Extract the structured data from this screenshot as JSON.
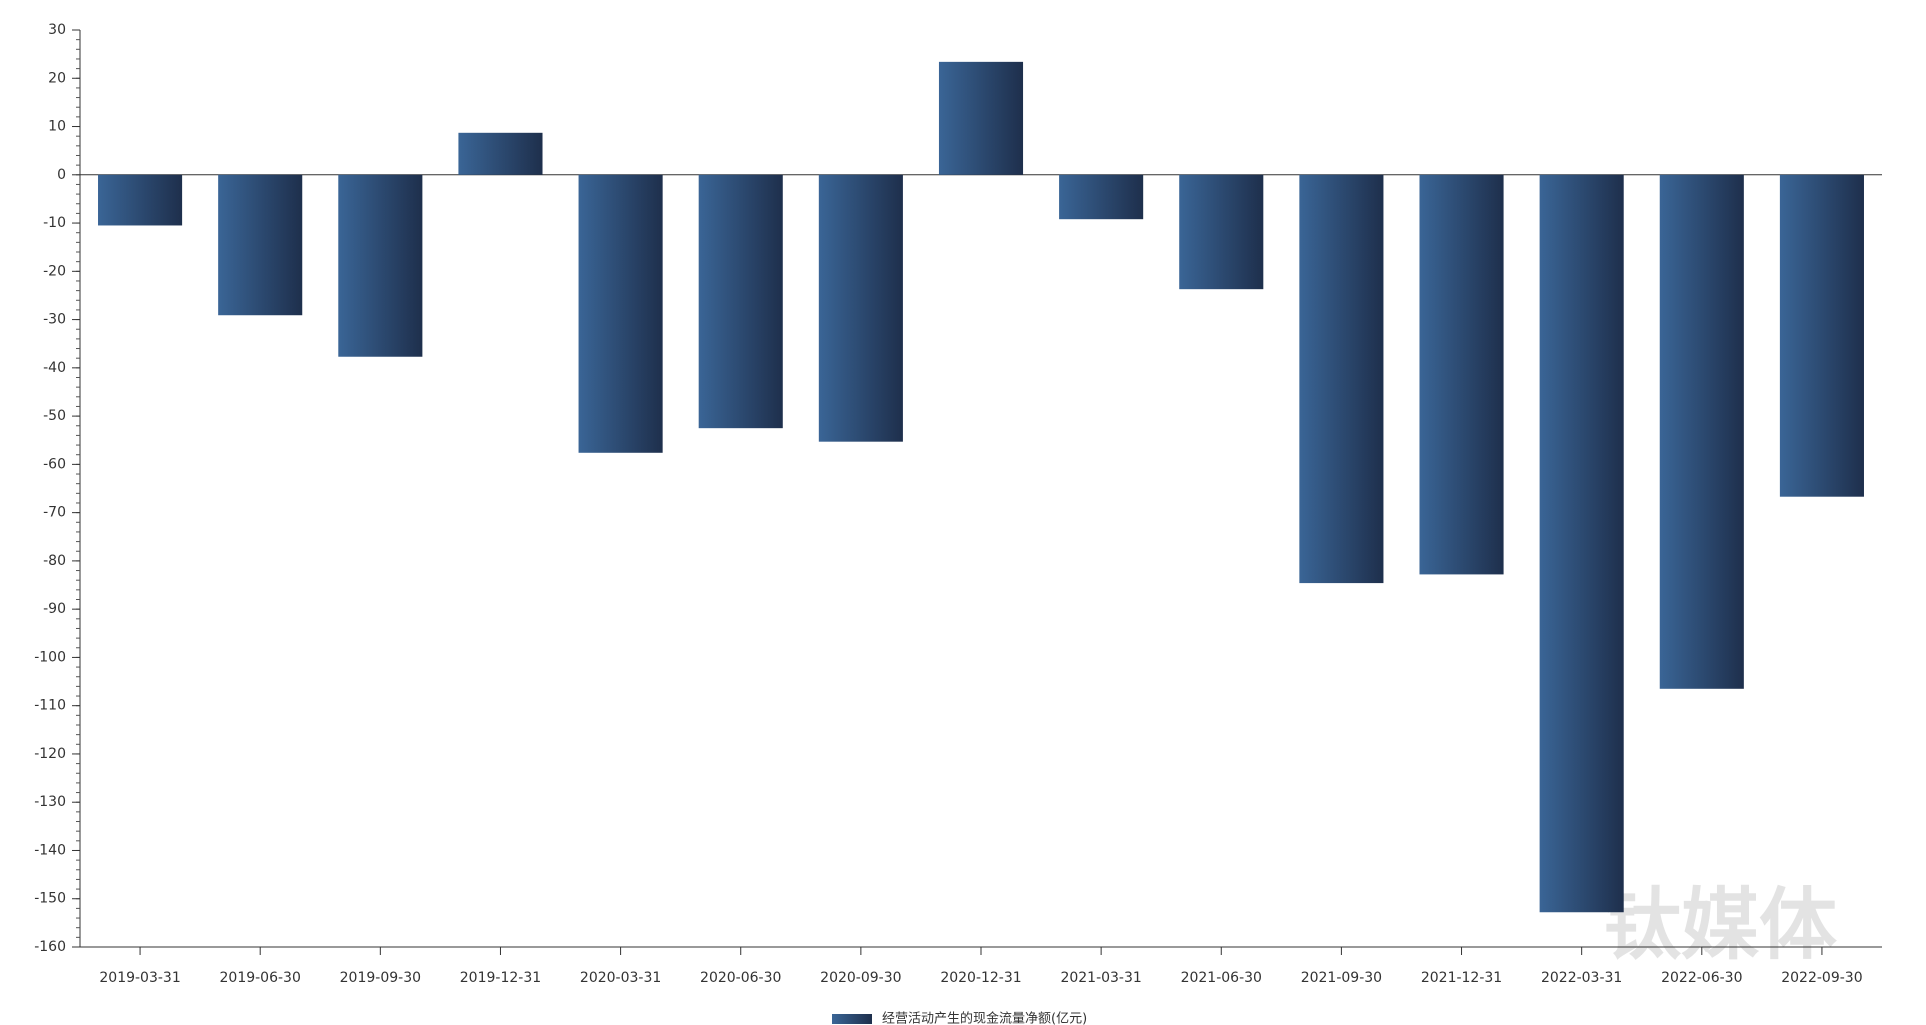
{
  "chart_data": {
    "type": "bar",
    "categories": [
      "2019-03-31",
      "2019-06-30",
      "2019-09-30",
      "2019-12-31",
      "2020-03-31",
      "2020-06-30",
      "2020-09-30",
      "2020-12-31",
      "2021-03-31",
      "2021-06-30",
      "2021-09-30",
      "2021-12-31",
      "2022-03-31",
      "2022-06-30",
      "2022-09-30"
    ],
    "series": [
      {
        "name": "经营活动产生的现金流量净额(亿元)",
        "color": "#2c4a73",
        "values": [
          -10.5,
          -29.1,
          -37.7,
          8.7,
          -57.6,
          -52.5,
          -55.3,
          23.4,
          -9.2,
          -23.7,
          -84.6,
          -82.8,
          -152.8,
          -106.5,
          -66.7
        ]
      }
    ],
    "ylim": [
      -160,
      30
    ],
    "yticks": [
      30,
      20,
      10,
      0,
      -10,
      -20,
      -30,
      -40,
      -50,
      -60,
      -70,
      -80,
      -90,
      -100,
      -110,
      -120,
      -130,
      -140,
      -150,
      -160
    ],
    "legend": "bottom",
    "watermark": "钛媒体"
  }
}
